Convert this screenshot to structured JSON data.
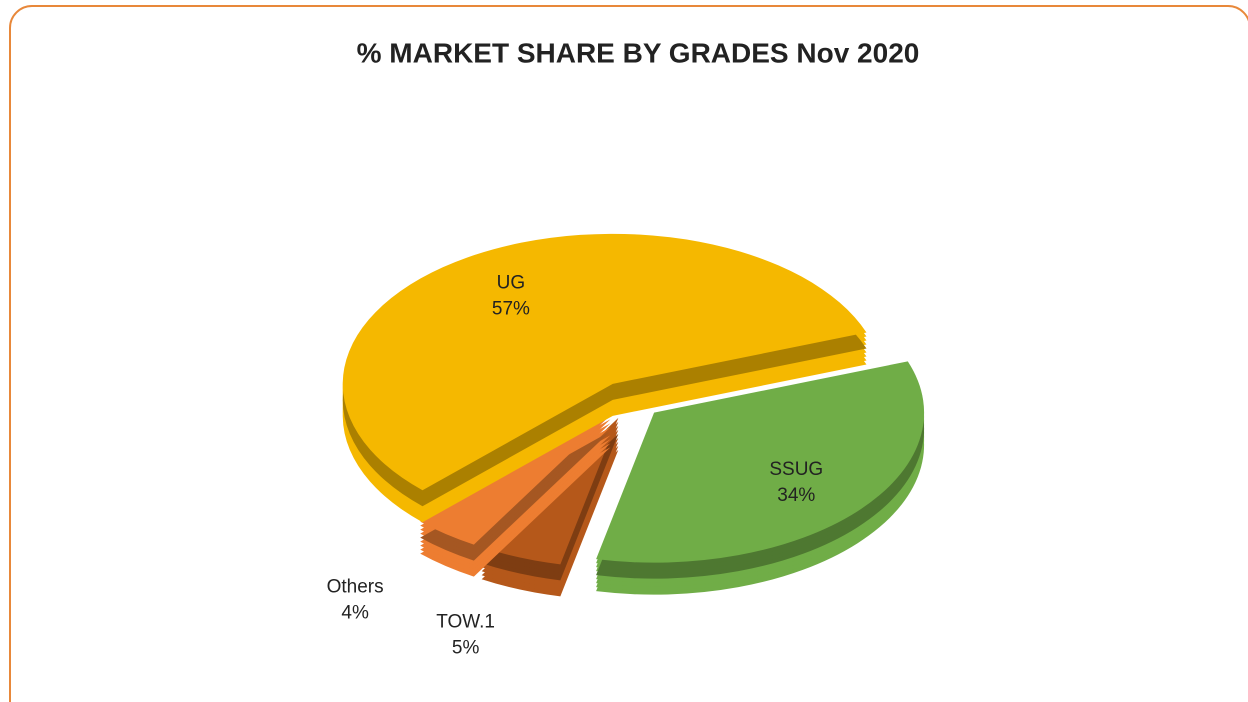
{
  "chart_data": {
    "type": "pie",
    "title": "% MARKET SHARE BY GRADES Nov 2020",
    "categories": [
      "SSUG",
      "TOW.1",
      "Others",
      "UG"
    ],
    "values": [
      34,
      5,
      4,
      57
    ],
    "value_labels": [
      "34%",
      "5%",
      "4%",
      "57%"
    ],
    "colors": [
      "#70ad47",
      "#b5581a",
      "#ed7d31",
      "#f5b800"
    ]
  }
}
